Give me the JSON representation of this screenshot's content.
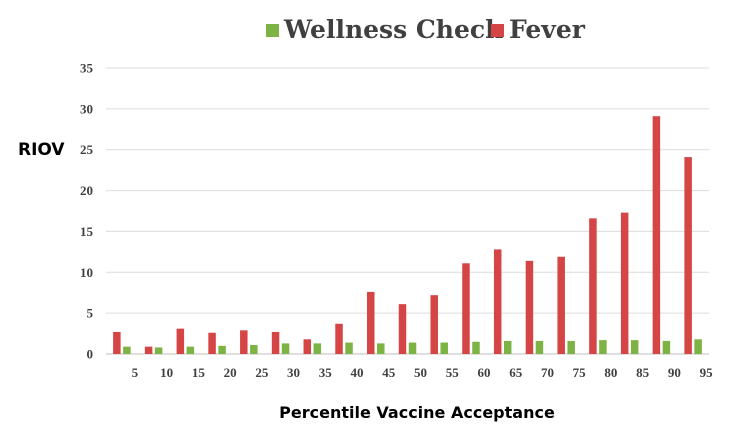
{
  "chart_data": {
    "type": "bar",
    "title": "",
    "xlabel": "Percentile Vaccine Acceptance",
    "ylabel": "RIOV",
    "categories": [
      "5",
      "10",
      "15",
      "20",
      "25",
      "30",
      "35",
      "40",
      "45",
      "50",
      "55",
      "60",
      "65",
      "70",
      "75",
      "80",
      "85",
      "90",
      "95"
    ],
    "ylim": [
      0,
      35
    ],
    "yticks": [
      "0",
      "5",
      "10",
      "15",
      "20",
      "25",
      "30",
      "35"
    ],
    "grid": true,
    "legend_position": "top-center",
    "series": [
      {
        "name": "Wellness Check",
        "color": "#7db344",
        "values": [
          0.9,
          0.8,
          0.9,
          1.0,
          1.1,
          1.3,
          1.3,
          1.4,
          1.3,
          1.4,
          1.4,
          1.5,
          1.6,
          1.6,
          1.6,
          1.7,
          1.7,
          1.6,
          1.8
        ]
      },
      {
        "name": "Fever",
        "color": "#d64545",
        "values": [
          2.7,
          0.9,
          3.1,
          2.6,
          2.9,
          2.7,
          1.8,
          3.7,
          7.6,
          6.1,
          7.2,
          11.1,
          12.8,
          11.4,
          11.9,
          16.6,
          17.3,
          29.1,
          24.1
        ]
      }
    ]
  }
}
